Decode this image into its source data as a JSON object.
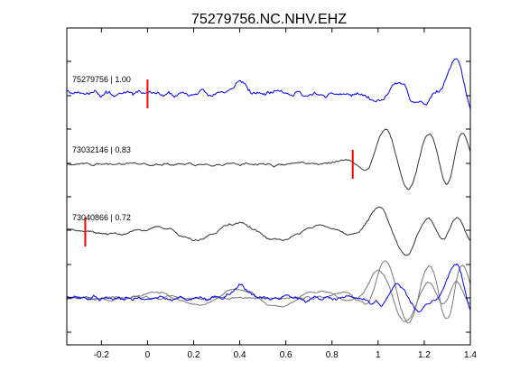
{
  "chart_data": {
    "type": "line",
    "title": "75279756.NC.NHV.EHZ",
    "xlabel": "",
    "ylabel": "",
    "xlim": [
      -0.35,
      1.4
    ],
    "xticks": [
      -0.2,
      0,
      0.2,
      0.4,
      0.6,
      0.8,
      1,
      1.2,
      1.4
    ],
    "xtick_labels": [
      "-0.2",
      "0",
      "0.2",
      "0.4",
      "0.6",
      "0.8",
      "1",
      "1.2",
      "1.4"
    ],
    "grid": false,
    "traces": [
      {
        "label": "75279756 | 1.00",
        "color": "#0000ff",
        "pick_time": 0.0,
        "pick_color": "#ff0000"
      },
      {
        "label": "73032146 | 0.83",
        "color": "#333333",
        "pick_time": 0.89,
        "pick_color": "#ff0000"
      },
      {
        "label": "73040866 | 0.72",
        "color": "#333333",
        "pick_time": -0.27,
        "pick_color": "#ff0000"
      }
    ],
    "stack": {
      "colors": [
        "#777777",
        "#777777",
        "#0000ff"
      ]
    }
  }
}
